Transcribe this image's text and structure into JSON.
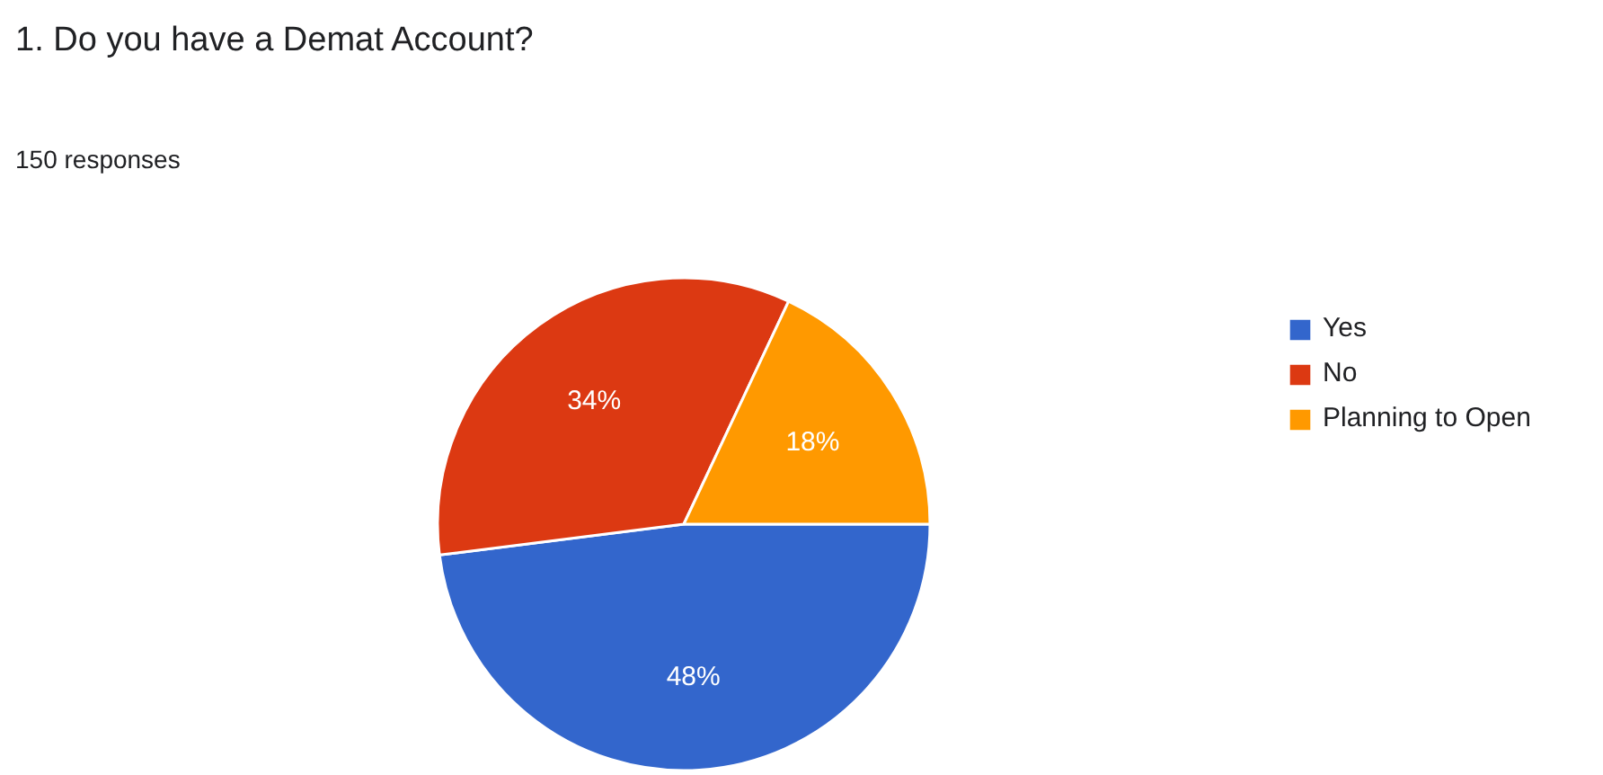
{
  "chart_data": {
    "type": "pie",
    "title": "1. Do you have a Demat Account?",
    "subtitle": "150 responses",
    "categories": [
      "Yes",
      "No",
      "Planning to Open"
    ],
    "values": [
      48,
      34,
      18
    ],
    "colors": [
      "#3366cc",
      "#dc3912",
      "#ff9900"
    ],
    "value_labels": [
      "48%",
      "34%",
      "18%"
    ],
    "legend": "right"
  }
}
